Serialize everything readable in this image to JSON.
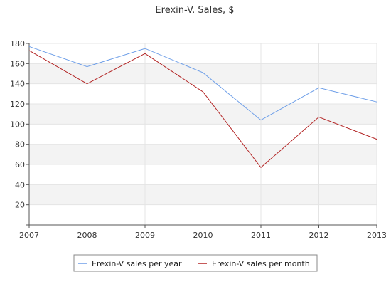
{
  "chart_data": {
    "type": "line",
    "title": "Erexin-V. Sales, $",
    "xlabel": "",
    "ylabel": "",
    "x": [
      "2007",
      "2008",
      "2009",
      "2010",
      "2011",
      "2012",
      "2013"
    ],
    "ylim": [
      0,
      180
    ],
    "yticks": [
      20,
      40,
      60,
      80,
      100,
      120,
      140,
      160,
      180
    ],
    "grid": true,
    "legend_position": "bottom",
    "series": [
      {
        "name": "Erexin-V sales per year",
        "color": "#6d9ee8",
        "values": [
          177,
          157,
          175,
          151,
          104,
          136,
          122
        ]
      },
      {
        "name": "Erexin-V sales per month",
        "color": "#b22222",
        "values": [
          173,
          140,
          170,
          132,
          57,
          107,
          85
        ]
      }
    ]
  }
}
